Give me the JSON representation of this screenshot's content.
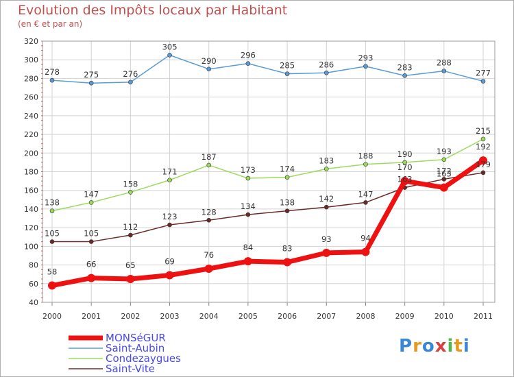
{
  "header": {
    "title": "Evolution des Impôts locaux par Habitant",
    "subtitle": "(en € et par an)"
  },
  "brand": {
    "text": "Proxiti"
  },
  "colors": {
    "monsegur": "#ee1111",
    "saint_aubin": "#5b9bd5",
    "condezaygues": "#9bdb5c",
    "saint_vite": "#6b2a2a",
    "title": "#c0504d",
    "grid": "#d3d3d3",
    "legend_text": "#4a4ae8"
  },
  "chart_data": {
    "type": "line",
    "title": "Evolution des Impôts locaux par Habitant",
    "subtitle": "(en € et par an)",
    "xlabel": "",
    "ylabel": "",
    "grid": true,
    "legend_position": "bottom-left",
    "ylim": [
      40,
      320
    ],
    "yticks": [
      40,
      60,
      80,
      100,
      120,
      140,
      160,
      180,
      200,
      220,
      240,
      260,
      280,
      300,
      320
    ],
    "x": [
      "2000",
      "2001",
      "2002",
      "2003",
      "2004",
      "2005",
      "2006",
      "2007",
      "2008",
      "2009",
      "2010",
      "2011"
    ],
    "series": [
      {
        "name": "MONSéGUR",
        "key": "monsegur",
        "color": "#ee1111",
        "width": 7,
        "marker": 6,
        "values": [
          58,
          66,
          65,
          69,
          76,
          84,
          83,
          93,
          94,
          170,
          163,
          192
        ]
      },
      {
        "name": "Saint-Aubin",
        "key": "saint_aubin",
        "color": "#5b9bd5",
        "width": 1.5,
        "marker": 3,
        "values": [
          278,
          275,
          276,
          305,
          290,
          296,
          285,
          286,
          293,
          283,
          288,
          277
        ]
      },
      {
        "name": "Condezaygues",
        "key": "condezaygues",
        "color": "#9bdb5c",
        "width": 1.5,
        "marker": 3,
        "values": [
          138,
          147,
          158,
          171,
          187,
          173,
          174,
          183,
          188,
          190,
          193,
          215
        ]
      },
      {
        "name": "Saint-Vite",
        "key": "saint_vite",
        "color": "#6b2a2a",
        "width": 1.5,
        "marker": 3,
        "values": [
          105,
          105,
          112,
          123,
          128,
          134,
          138,
          142,
          147,
          163,
          172,
          179
        ]
      }
    ]
  }
}
